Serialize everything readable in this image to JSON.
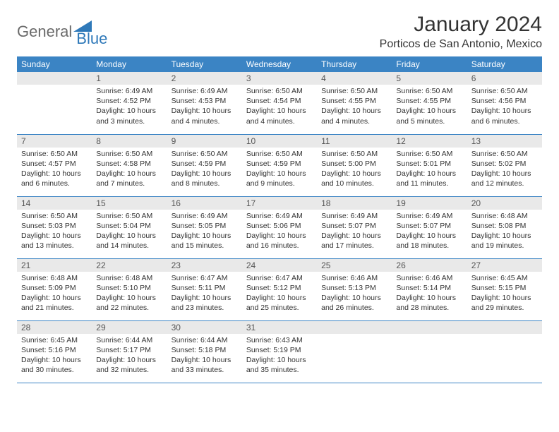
{
  "brand": {
    "word1": "General",
    "word2": "Blue"
  },
  "title": "January 2024",
  "location": "Porticos de San Antonio, Mexico",
  "colors": {
    "header_bg": "#3b84c4",
    "header_text": "#ffffff",
    "daynum_bg": "#e9e9e9",
    "border": "#3b84c4",
    "text": "#333333",
    "logo_gray": "#6a6a6a",
    "logo_blue": "#2f79b9"
  },
  "day_headers": [
    "Sunday",
    "Monday",
    "Tuesday",
    "Wednesday",
    "Thursday",
    "Friday",
    "Saturday"
  ],
  "weeks": [
    [
      {
        "n": "",
        "sunrise": "",
        "sunset": "",
        "daylight": ""
      },
      {
        "n": "1",
        "sunrise": "Sunrise: 6:49 AM",
        "sunset": "Sunset: 4:52 PM",
        "daylight": "Daylight: 10 hours and 3 minutes."
      },
      {
        "n": "2",
        "sunrise": "Sunrise: 6:49 AM",
        "sunset": "Sunset: 4:53 PM",
        "daylight": "Daylight: 10 hours and 4 minutes."
      },
      {
        "n": "3",
        "sunrise": "Sunrise: 6:50 AM",
        "sunset": "Sunset: 4:54 PM",
        "daylight": "Daylight: 10 hours and 4 minutes."
      },
      {
        "n": "4",
        "sunrise": "Sunrise: 6:50 AM",
        "sunset": "Sunset: 4:55 PM",
        "daylight": "Daylight: 10 hours and 4 minutes."
      },
      {
        "n": "5",
        "sunrise": "Sunrise: 6:50 AM",
        "sunset": "Sunset: 4:55 PM",
        "daylight": "Daylight: 10 hours and 5 minutes."
      },
      {
        "n": "6",
        "sunrise": "Sunrise: 6:50 AM",
        "sunset": "Sunset: 4:56 PM",
        "daylight": "Daylight: 10 hours and 6 minutes."
      }
    ],
    [
      {
        "n": "7",
        "sunrise": "Sunrise: 6:50 AM",
        "sunset": "Sunset: 4:57 PM",
        "daylight": "Daylight: 10 hours and 6 minutes."
      },
      {
        "n": "8",
        "sunrise": "Sunrise: 6:50 AM",
        "sunset": "Sunset: 4:58 PM",
        "daylight": "Daylight: 10 hours and 7 minutes."
      },
      {
        "n": "9",
        "sunrise": "Sunrise: 6:50 AM",
        "sunset": "Sunset: 4:59 PM",
        "daylight": "Daylight: 10 hours and 8 minutes."
      },
      {
        "n": "10",
        "sunrise": "Sunrise: 6:50 AM",
        "sunset": "Sunset: 4:59 PM",
        "daylight": "Daylight: 10 hours and 9 minutes."
      },
      {
        "n": "11",
        "sunrise": "Sunrise: 6:50 AM",
        "sunset": "Sunset: 5:00 PM",
        "daylight": "Daylight: 10 hours and 10 minutes."
      },
      {
        "n": "12",
        "sunrise": "Sunrise: 6:50 AM",
        "sunset": "Sunset: 5:01 PM",
        "daylight": "Daylight: 10 hours and 11 minutes."
      },
      {
        "n": "13",
        "sunrise": "Sunrise: 6:50 AM",
        "sunset": "Sunset: 5:02 PM",
        "daylight": "Daylight: 10 hours and 12 minutes."
      }
    ],
    [
      {
        "n": "14",
        "sunrise": "Sunrise: 6:50 AM",
        "sunset": "Sunset: 5:03 PM",
        "daylight": "Daylight: 10 hours and 13 minutes."
      },
      {
        "n": "15",
        "sunrise": "Sunrise: 6:50 AM",
        "sunset": "Sunset: 5:04 PM",
        "daylight": "Daylight: 10 hours and 14 minutes."
      },
      {
        "n": "16",
        "sunrise": "Sunrise: 6:49 AM",
        "sunset": "Sunset: 5:05 PM",
        "daylight": "Daylight: 10 hours and 15 minutes."
      },
      {
        "n": "17",
        "sunrise": "Sunrise: 6:49 AM",
        "sunset": "Sunset: 5:06 PM",
        "daylight": "Daylight: 10 hours and 16 minutes."
      },
      {
        "n": "18",
        "sunrise": "Sunrise: 6:49 AM",
        "sunset": "Sunset: 5:07 PM",
        "daylight": "Daylight: 10 hours and 17 minutes."
      },
      {
        "n": "19",
        "sunrise": "Sunrise: 6:49 AM",
        "sunset": "Sunset: 5:07 PM",
        "daylight": "Daylight: 10 hours and 18 minutes."
      },
      {
        "n": "20",
        "sunrise": "Sunrise: 6:48 AM",
        "sunset": "Sunset: 5:08 PM",
        "daylight": "Daylight: 10 hours and 19 minutes."
      }
    ],
    [
      {
        "n": "21",
        "sunrise": "Sunrise: 6:48 AM",
        "sunset": "Sunset: 5:09 PM",
        "daylight": "Daylight: 10 hours and 21 minutes."
      },
      {
        "n": "22",
        "sunrise": "Sunrise: 6:48 AM",
        "sunset": "Sunset: 5:10 PM",
        "daylight": "Daylight: 10 hours and 22 minutes."
      },
      {
        "n": "23",
        "sunrise": "Sunrise: 6:47 AM",
        "sunset": "Sunset: 5:11 PM",
        "daylight": "Daylight: 10 hours and 23 minutes."
      },
      {
        "n": "24",
        "sunrise": "Sunrise: 6:47 AM",
        "sunset": "Sunset: 5:12 PM",
        "daylight": "Daylight: 10 hours and 25 minutes."
      },
      {
        "n": "25",
        "sunrise": "Sunrise: 6:46 AM",
        "sunset": "Sunset: 5:13 PM",
        "daylight": "Daylight: 10 hours and 26 minutes."
      },
      {
        "n": "26",
        "sunrise": "Sunrise: 6:46 AM",
        "sunset": "Sunset: 5:14 PM",
        "daylight": "Daylight: 10 hours and 28 minutes."
      },
      {
        "n": "27",
        "sunrise": "Sunrise: 6:45 AM",
        "sunset": "Sunset: 5:15 PM",
        "daylight": "Daylight: 10 hours and 29 minutes."
      }
    ],
    [
      {
        "n": "28",
        "sunrise": "Sunrise: 6:45 AM",
        "sunset": "Sunset: 5:16 PM",
        "daylight": "Daylight: 10 hours and 30 minutes."
      },
      {
        "n": "29",
        "sunrise": "Sunrise: 6:44 AM",
        "sunset": "Sunset: 5:17 PM",
        "daylight": "Daylight: 10 hours and 32 minutes."
      },
      {
        "n": "30",
        "sunrise": "Sunrise: 6:44 AM",
        "sunset": "Sunset: 5:18 PM",
        "daylight": "Daylight: 10 hours and 33 minutes."
      },
      {
        "n": "31",
        "sunrise": "Sunrise: 6:43 AM",
        "sunset": "Sunset: 5:19 PM",
        "daylight": "Daylight: 10 hours and 35 minutes."
      },
      {
        "n": "",
        "sunrise": "",
        "sunset": "",
        "daylight": ""
      },
      {
        "n": "",
        "sunrise": "",
        "sunset": "",
        "daylight": ""
      },
      {
        "n": "",
        "sunrise": "",
        "sunset": "",
        "daylight": ""
      }
    ]
  ]
}
